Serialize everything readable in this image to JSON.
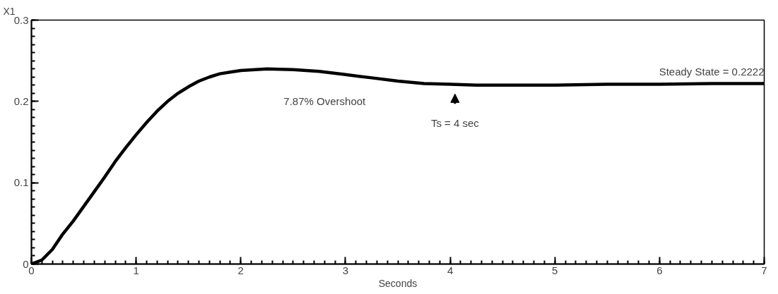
{
  "chart_data": {
    "type": "line",
    "xlabel": "Seconds",
    "ylabel": "X1",
    "x": [
      0,
      0.1,
      0.2,
      0.3,
      0.4,
      0.5,
      0.6,
      0.7,
      0.8,
      0.9,
      1.0,
      1.1,
      1.2,
      1.3,
      1.4,
      1.5,
      1.6,
      1.7,
      1.8,
      1.9,
      2.0,
      2.25,
      2.5,
      2.75,
      3.0,
      3.25,
      3.5,
      3.75,
      4.0,
      4.25,
      4.5,
      5.0,
      5.5,
      6.0,
      6.5,
      7.0
    ],
    "series": [
      {
        "color": "#000000",
        "values": [
          0,
          0.005,
          0.018,
          0.037,
          0.053,
          0.071,
          0.089,
          0.107,
          0.126,
          0.143,
          0.159,
          0.174,
          0.188,
          0.2,
          0.21,
          0.218,
          0.225,
          0.23,
          0.234,
          0.236,
          0.238,
          0.24,
          0.239,
          0.237,
          0.233,
          0.229,
          0.225,
          0.222,
          0.221,
          0.22,
          0.22,
          0.22,
          0.221,
          0.221,
          0.222,
          0.222
        ]
      }
    ],
    "xlim": [
      0,
      7
    ],
    "ylim": [
      0,
      0.3
    ],
    "xticks": [
      0,
      1,
      2,
      3,
      4,
      5,
      6,
      7
    ],
    "yticks": [
      0,
      0.1,
      0.2,
      0.3
    ],
    "annotations": [
      "7.87% Overshoot",
      "Ts = 4 sec",
      {
        "text": "Steady State = 0.2222",
        "x": 7,
        "y": 0.2222
      }
    ],
    "grid": false,
    "marker": "none",
    "line_style": "solid"
  }
}
